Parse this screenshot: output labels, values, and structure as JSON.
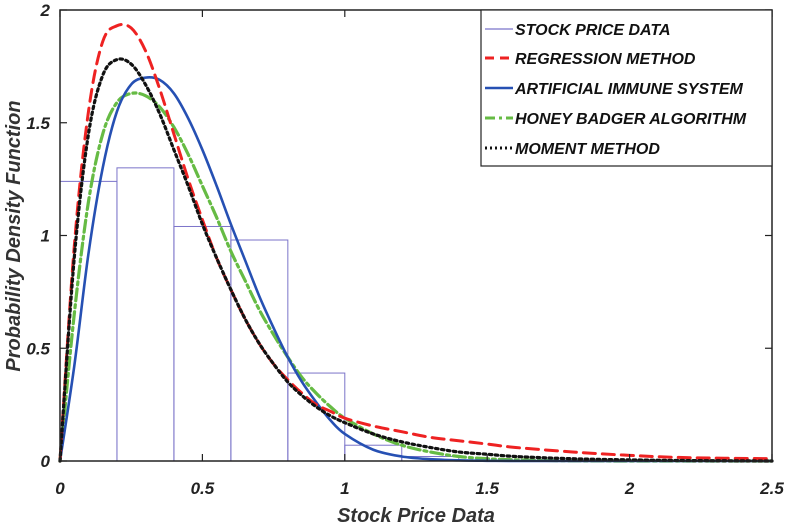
{
  "chart_data": {
    "type": "line",
    "xlabel": "Stock Price Data",
    "ylabel": "Probability Density Function",
    "xlim": [
      0,
      2.5
    ],
    "ylim": [
      0,
      2
    ],
    "xticks": [
      "0",
      "0.5",
      "1",
      "1.5",
      "2",
      "2.5"
    ],
    "yticks": [
      "0",
      "0.5",
      "1",
      "1.5",
      "2"
    ],
    "grid": false,
    "legend_position": "top-right",
    "histogram": {
      "name": "STOCK PRICE DATA",
      "color": "#7b74c9",
      "bins": [
        {
          "x0": 0.0,
          "x1": 0.2,
          "value": 1.24
        },
        {
          "x0": 0.2,
          "x1": 0.4,
          "value": 1.3
        },
        {
          "x0": 0.4,
          "x1": 0.6,
          "value": 1.04
        },
        {
          "x0": 0.6,
          "x1": 0.8,
          "value": 0.98
        },
        {
          "x0": 0.8,
          "x1": 1.0,
          "value": 0.39
        },
        {
          "x0": 1.0,
          "x1": 1.2,
          "value": 0.07
        },
        {
          "x0": 1.2,
          "x1": 1.4,
          "value": 0.02
        },
        {
          "x0": 1.4,
          "x1": 2.5,
          "value": 0.0
        }
      ]
    },
    "x": [
      0,
      0.05,
      0.1,
      0.15,
      0.2,
      0.25,
      0.3,
      0.35,
      0.4,
      0.45,
      0.5,
      0.55,
      0.6,
      0.65,
      0.7,
      0.75,
      0.8,
      0.85,
      0.9,
      0.95,
      1.0,
      1.1,
      1.2,
      1.3,
      1.4,
      1.5,
      1.6,
      1.8,
      2.0,
      2.2,
      2.5
    ],
    "series": [
      {
        "name": "REGRESSION METHOD",
        "color": "#ee2222",
        "dash": "dashed",
        "values": [
          0,
          0.95,
          1.55,
          1.86,
          1.93,
          1.92,
          1.82,
          1.65,
          1.45,
          1.25,
          1.07,
          0.9,
          0.76,
          0.63,
          0.52,
          0.43,
          0.36,
          0.3,
          0.25,
          0.22,
          0.19,
          0.155,
          0.13,
          0.105,
          0.09,
          0.075,
          0.06,
          0.04,
          0.025,
          0.015,
          0.01
        ]
      },
      {
        "name": "ARTIFICIAL IMMUNE SYSTEM",
        "color": "#2650b3",
        "dash": "solid",
        "values": [
          0,
          0.42,
          0.92,
          1.3,
          1.55,
          1.67,
          1.7,
          1.69,
          1.63,
          1.52,
          1.38,
          1.22,
          1.05,
          0.89,
          0.73,
          0.59,
          0.46,
          0.35,
          0.26,
          0.18,
          0.12,
          0.05,
          0.02,
          0.008,
          0.003,
          0.001,
          0.0,
          0.0,
          0.0,
          0.0,
          0.0
        ]
      },
      {
        "name": "HONEY BADGER ALGORITHM",
        "color": "#66bb44",
        "dash": "dashdot",
        "values": [
          0,
          0.65,
          1.15,
          1.45,
          1.59,
          1.63,
          1.62,
          1.57,
          1.48,
          1.36,
          1.22,
          1.08,
          0.93,
          0.8,
          0.67,
          0.56,
          0.46,
          0.37,
          0.3,
          0.24,
          0.19,
          0.12,
          0.07,
          0.04,
          0.02,
          0.01,
          0.005,
          0.001,
          0.0,
          0.0,
          0.0
        ]
      },
      {
        "name": "MOMENT METHOD",
        "color": "#111111",
        "dash": "dotted",
        "values": [
          0,
          0.9,
          1.45,
          1.71,
          1.78,
          1.76,
          1.67,
          1.54,
          1.38,
          1.22,
          1.05,
          0.9,
          0.76,
          0.63,
          0.52,
          0.43,
          0.35,
          0.29,
          0.24,
          0.2,
          0.17,
          0.12,
          0.085,
          0.06,
          0.04,
          0.03,
          0.02,
          0.01,
          0.005,
          0.002,
          0.0
        ]
      }
    ]
  }
}
